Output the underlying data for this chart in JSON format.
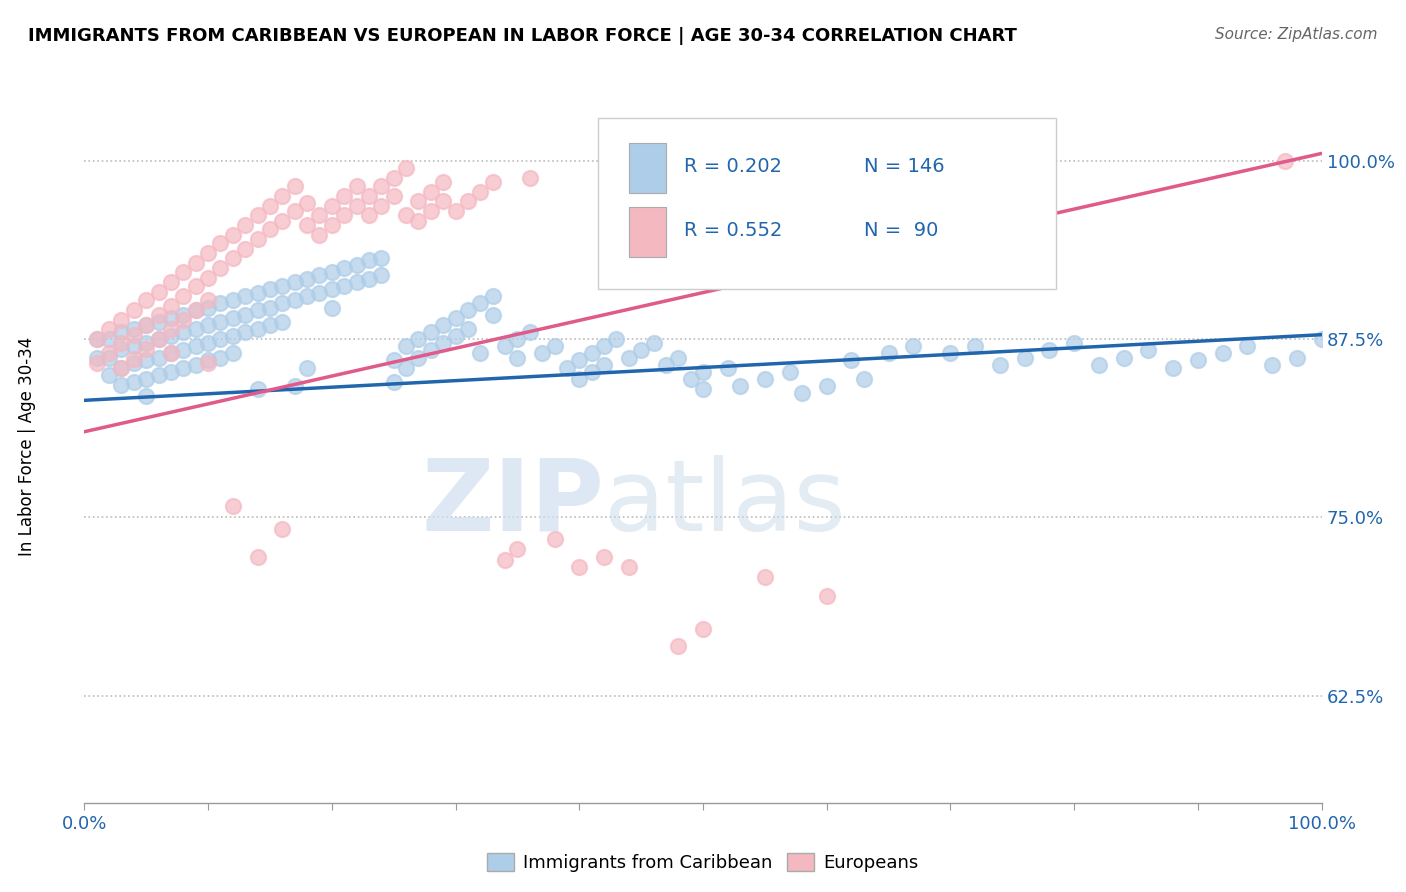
{
  "title": "IMMIGRANTS FROM CARIBBEAN VS EUROPEAN IN LABOR FORCE | AGE 30-34 CORRELATION CHART",
  "source": "Source: ZipAtlas.com",
  "ylabel": "In Labor Force | Age 30-34",
  "xlim": [
    0.0,
    1.0
  ],
  "ylim": [
    0.55,
    1.05
  ],
  "yticks": [
    0.625,
    0.75,
    0.875,
    1.0
  ],
  "ytick_labels": [
    "62.5%",
    "75.0%",
    "87.5%",
    "100.0%"
  ],
  "xtick_labels": [
    "0.0%",
    "100.0%"
  ],
  "legend_r1": "0.202",
  "legend_n1": "146",
  "legend_r2": "0.552",
  "legend_n2": "90",
  "color_caribbean": "#aecde8",
  "color_european": "#f4b8c1",
  "color_line_caribbean": "#2166ac",
  "color_line_european": "#e05a8a",
  "watermark_zip": "ZIP",
  "watermark_atlas": "atlas",
  "caribbean_trend_x0": 0.0,
  "caribbean_trend_y0": 0.832,
  "caribbean_trend_x1": 1.0,
  "caribbean_trend_y1": 0.878,
  "european_trend_x0": 0.0,
  "european_trend_y0": 0.81,
  "european_trend_x1": 1.0,
  "european_trend_y1": 1.005,
  "caribbean_points": [
    [
      0.01,
      0.875
    ],
    [
      0.01,
      0.862
    ],
    [
      0.02,
      0.875
    ],
    [
      0.02,
      0.862
    ],
    [
      0.02,
      0.85
    ],
    [
      0.03,
      0.88
    ],
    [
      0.03,
      0.868
    ],
    [
      0.03,
      0.855
    ],
    [
      0.03,
      0.843
    ],
    [
      0.04,
      0.882
    ],
    [
      0.04,
      0.87
    ],
    [
      0.04,
      0.858
    ],
    [
      0.04,
      0.845
    ],
    [
      0.05,
      0.885
    ],
    [
      0.05,
      0.872
    ],
    [
      0.05,
      0.86
    ],
    [
      0.05,
      0.847
    ],
    [
      0.05,
      0.835
    ],
    [
      0.06,
      0.887
    ],
    [
      0.06,
      0.875
    ],
    [
      0.06,
      0.862
    ],
    [
      0.06,
      0.85
    ],
    [
      0.07,
      0.89
    ],
    [
      0.07,
      0.877
    ],
    [
      0.07,
      0.865
    ],
    [
      0.07,
      0.852
    ],
    [
      0.08,
      0.892
    ],
    [
      0.08,
      0.88
    ],
    [
      0.08,
      0.867
    ],
    [
      0.08,
      0.855
    ],
    [
      0.09,
      0.895
    ],
    [
      0.09,
      0.882
    ],
    [
      0.09,
      0.87
    ],
    [
      0.09,
      0.857
    ],
    [
      0.1,
      0.897
    ],
    [
      0.1,
      0.885
    ],
    [
      0.1,
      0.872
    ],
    [
      0.1,
      0.86
    ],
    [
      0.11,
      0.9
    ],
    [
      0.11,
      0.887
    ],
    [
      0.11,
      0.875
    ],
    [
      0.11,
      0.862
    ],
    [
      0.12,
      0.902
    ],
    [
      0.12,
      0.89
    ],
    [
      0.12,
      0.877
    ],
    [
      0.12,
      0.865
    ],
    [
      0.13,
      0.905
    ],
    [
      0.13,
      0.892
    ],
    [
      0.13,
      0.88
    ],
    [
      0.14,
      0.907
    ],
    [
      0.14,
      0.895
    ],
    [
      0.14,
      0.882
    ],
    [
      0.14,
      0.84
    ],
    [
      0.15,
      0.91
    ],
    [
      0.15,
      0.897
    ],
    [
      0.15,
      0.885
    ],
    [
      0.16,
      0.912
    ],
    [
      0.16,
      0.9
    ],
    [
      0.16,
      0.887
    ],
    [
      0.17,
      0.915
    ],
    [
      0.17,
      0.902
    ],
    [
      0.17,
      0.842
    ],
    [
      0.18,
      0.917
    ],
    [
      0.18,
      0.905
    ],
    [
      0.18,
      0.855
    ],
    [
      0.19,
      0.92
    ],
    [
      0.19,
      0.907
    ],
    [
      0.2,
      0.922
    ],
    [
      0.2,
      0.91
    ],
    [
      0.2,
      0.897
    ],
    [
      0.21,
      0.925
    ],
    [
      0.21,
      0.912
    ],
    [
      0.22,
      0.927
    ],
    [
      0.22,
      0.915
    ],
    [
      0.23,
      0.93
    ],
    [
      0.23,
      0.917
    ],
    [
      0.24,
      0.932
    ],
    [
      0.24,
      0.92
    ],
    [
      0.25,
      0.86
    ],
    [
      0.25,
      0.845
    ],
    [
      0.26,
      0.87
    ],
    [
      0.26,
      0.855
    ],
    [
      0.27,
      0.875
    ],
    [
      0.27,
      0.862
    ],
    [
      0.28,
      0.88
    ],
    [
      0.28,
      0.867
    ],
    [
      0.29,
      0.885
    ],
    [
      0.29,
      0.872
    ],
    [
      0.3,
      0.89
    ],
    [
      0.3,
      0.877
    ],
    [
      0.31,
      0.895
    ],
    [
      0.31,
      0.882
    ],
    [
      0.32,
      0.9
    ],
    [
      0.32,
      0.865
    ],
    [
      0.33,
      0.905
    ],
    [
      0.33,
      0.892
    ],
    [
      0.34,
      0.87
    ],
    [
      0.35,
      0.875
    ],
    [
      0.35,
      0.862
    ],
    [
      0.36,
      0.88
    ],
    [
      0.37,
      0.865
    ],
    [
      0.38,
      0.87
    ],
    [
      0.39,
      0.855
    ],
    [
      0.4,
      0.86
    ],
    [
      0.4,
      0.847
    ],
    [
      0.41,
      0.865
    ],
    [
      0.41,
      0.852
    ],
    [
      0.42,
      0.87
    ],
    [
      0.42,
      0.857
    ],
    [
      0.43,
      0.875
    ],
    [
      0.44,
      0.862
    ],
    [
      0.45,
      0.867
    ],
    [
      0.46,
      0.872
    ],
    [
      0.47,
      0.857
    ],
    [
      0.48,
      0.862
    ],
    [
      0.49,
      0.847
    ],
    [
      0.5,
      0.852
    ],
    [
      0.5,
      0.84
    ],
    [
      0.52,
      0.855
    ],
    [
      0.53,
      0.842
    ],
    [
      0.55,
      0.847
    ],
    [
      0.57,
      0.852
    ],
    [
      0.58,
      0.837
    ],
    [
      0.6,
      0.842
    ],
    [
      0.62,
      0.86
    ],
    [
      0.63,
      0.847
    ],
    [
      0.65,
      0.865
    ],
    [
      0.67,
      0.87
    ],
    [
      0.7,
      0.865
    ],
    [
      0.72,
      0.87
    ],
    [
      0.74,
      0.857
    ],
    [
      0.76,
      0.862
    ],
    [
      0.78,
      0.867
    ],
    [
      0.8,
      0.872
    ],
    [
      0.82,
      0.857
    ],
    [
      0.84,
      0.862
    ],
    [
      0.86,
      0.867
    ],
    [
      0.88,
      0.855
    ],
    [
      0.9,
      0.86
    ],
    [
      0.92,
      0.865
    ],
    [
      0.94,
      0.87
    ],
    [
      0.96,
      0.857
    ],
    [
      0.98,
      0.862
    ],
    [
      1.0,
      0.875
    ]
  ],
  "european_points": [
    [
      0.01,
      0.875
    ],
    [
      0.01,
      0.858
    ],
    [
      0.02,
      0.882
    ],
    [
      0.02,
      0.865
    ],
    [
      0.03,
      0.888
    ],
    [
      0.03,
      0.872
    ],
    [
      0.03,
      0.855
    ],
    [
      0.04,
      0.895
    ],
    [
      0.04,
      0.878
    ],
    [
      0.04,
      0.861
    ],
    [
      0.05,
      0.902
    ],
    [
      0.05,
      0.885
    ],
    [
      0.05,
      0.868
    ],
    [
      0.06,
      0.908
    ],
    [
      0.06,
      0.892
    ],
    [
      0.06,
      0.875
    ],
    [
      0.07,
      0.915
    ],
    [
      0.07,
      0.898
    ],
    [
      0.07,
      0.882
    ],
    [
      0.07,
      0.865
    ],
    [
      0.08,
      0.922
    ],
    [
      0.08,
      0.905
    ],
    [
      0.08,
      0.888
    ],
    [
      0.09,
      0.928
    ],
    [
      0.09,
      0.912
    ],
    [
      0.09,
      0.895
    ],
    [
      0.1,
      0.935
    ],
    [
      0.1,
      0.918
    ],
    [
      0.1,
      0.902
    ],
    [
      0.1,
      0.858
    ],
    [
      0.11,
      0.942
    ],
    [
      0.11,
      0.925
    ],
    [
      0.12,
      0.948
    ],
    [
      0.12,
      0.932
    ],
    [
      0.12,
      0.758
    ],
    [
      0.13,
      0.955
    ],
    [
      0.13,
      0.938
    ],
    [
      0.14,
      0.962
    ],
    [
      0.14,
      0.945
    ],
    [
      0.14,
      0.722
    ],
    [
      0.15,
      0.968
    ],
    [
      0.15,
      0.952
    ],
    [
      0.16,
      0.975
    ],
    [
      0.16,
      0.958
    ],
    [
      0.16,
      0.742
    ],
    [
      0.17,
      0.982
    ],
    [
      0.17,
      0.965
    ],
    [
      0.18,
      0.97
    ],
    [
      0.18,
      0.955
    ],
    [
      0.19,
      0.962
    ],
    [
      0.19,
      0.948
    ],
    [
      0.2,
      0.968
    ],
    [
      0.2,
      0.955
    ],
    [
      0.21,
      0.975
    ],
    [
      0.21,
      0.962
    ],
    [
      0.22,
      0.982
    ],
    [
      0.22,
      0.968
    ],
    [
      0.23,
      0.975
    ],
    [
      0.23,
      0.962
    ],
    [
      0.24,
      0.982
    ],
    [
      0.24,
      0.968
    ],
    [
      0.25,
      0.988
    ],
    [
      0.25,
      0.975
    ],
    [
      0.26,
      0.995
    ],
    [
      0.26,
      0.962
    ],
    [
      0.27,
      0.972
    ],
    [
      0.27,
      0.958
    ],
    [
      0.28,
      0.978
    ],
    [
      0.28,
      0.965
    ],
    [
      0.29,
      0.985
    ],
    [
      0.29,
      0.972
    ],
    [
      0.3,
      0.965
    ],
    [
      0.31,
      0.972
    ],
    [
      0.32,
      0.978
    ],
    [
      0.33,
      0.985
    ],
    [
      0.34,
      0.72
    ],
    [
      0.35,
      0.728
    ],
    [
      0.36,
      0.988
    ],
    [
      0.38,
      0.735
    ],
    [
      0.4,
      0.715
    ],
    [
      0.42,
      0.722
    ],
    [
      0.44,
      0.715
    ],
    [
      0.48,
      0.66
    ],
    [
      0.5,
      0.672
    ],
    [
      0.55,
      0.708
    ],
    [
      0.6,
      0.695
    ],
    [
      0.97,
      1.0
    ]
  ]
}
